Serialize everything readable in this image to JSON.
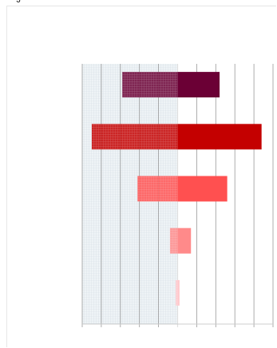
{
  "chart_data": {
    "type": "bar",
    "orientation": "horizontal",
    "title": "",
    "xlabel": "",
    "ylabel": "",
    "categories": [
      "",
      "",
      "",
      "",
      ""
    ],
    "values": [
      {
        "negative": -0.29,
        "positive": 0.22
      },
      {
        "negative": -0.45,
        "positive": 0.44
      },
      {
        "negative": -0.21,
        "positive": 0.26
      },
      {
        "negative": -0.04,
        "positive": 0.07
      },
      {
        "negative": -0.01,
        "positive": 0.01
      }
    ],
    "colors": [
      "#6b0035",
      "#c40000",
      "#ff5050",
      "#ff8a8a",
      "#ffc8cc"
    ],
    "negative_region_shaded": true,
    "negative_pattern": "hatched",
    "xlim": [
      -0.5,
      0.5
    ],
    "grid": true,
    "legend": "none"
  },
  "corner_text": "’J"
}
